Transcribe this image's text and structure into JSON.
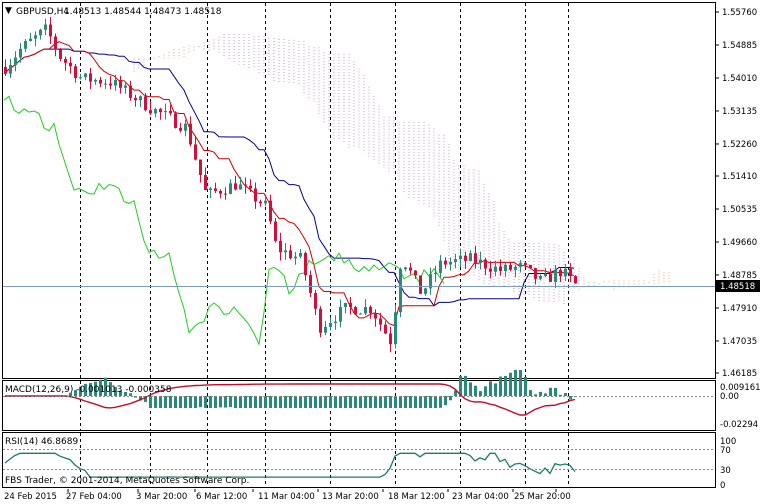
{
  "header": {
    "symbol": "GBPUSD,H4",
    "ohlc": "1.48513 1.48544 1.48473 1.48518"
  },
  "price_axis": {
    "ticks": [
      "1.55760",
      "1.54885",
      "1.54010",
      "1.53135",
      "1.52260",
      "1.51410",
      "1.50535",
      "1.49660",
      "1.48785",
      "1.47910",
      "1.47035",
      "1.46185"
    ],
    "current": "1.48518"
  },
  "time_axis": {
    "labels": [
      "24 Feb 2015",
      "27 Feb 04:00",
      "3 Mar 20:00",
      "6 Mar 12:00",
      "11 Mar 04:00",
      "13 Mar 20:00",
      "18 Mar 12:00",
      "23 Mar 04:00",
      "25 Mar 20:00"
    ]
  },
  "macd": {
    "label": "MACD(12,26,9) -0.001013 -0.000358",
    "ticks": [
      "0.009161",
      "0.00",
      "-0.02294"
    ]
  },
  "rsi": {
    "label": "RSI(14) 46.8689",
    "ticks": [
      "100",
      "70",
      "30",
      "0"
    ]
  },
  "copyright": "FBS Trader, © 2001-2014, MetaQuotes Software Corp.",
  "colors": {
    "bull": "#2a8a7a",
    "bear": "#d0103a",
    "tenkan": "#cc0000",
    "kijun": "#00008b",
    "chikou": "#22cc22",
    "cloud_a": "#f4a36b",
    "cloud_b": "#c896c8",
    "rsi": "#1e7a6e",
    "macd_signal": "#c0102a"
  }
}
